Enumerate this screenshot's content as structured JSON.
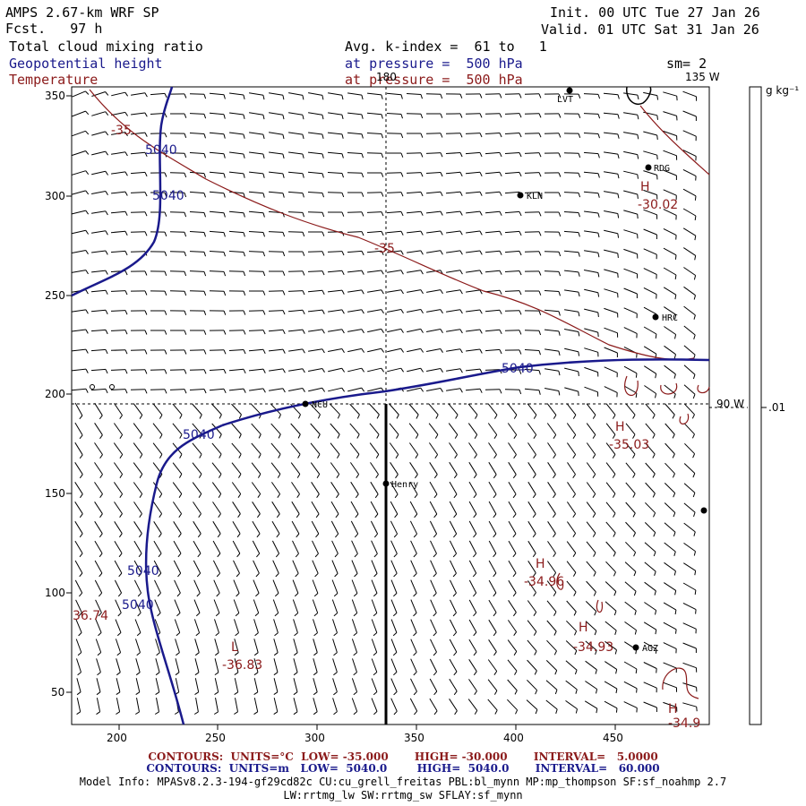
{
  "header": {
    "title": "AMPS 2.67-km WRF SP",
    "fcst": "Fcst.   97 h",
    "field1": "Total cloud mixing ratio",
    "field2": "Geopotential height",
    "field3": "Temperature",
    "init": "Init. 00 UTC Tue 27 Jan 26",
    "valid": "Valid. 01 UTC Sat 31 Jan 26",
    "avg": "Avg. k-index =  61 to   1",
    "pressure1": "at pressure =  500 hPa",
    "pressure2": "at pressure =  500 hPa",
    "sm": "sm= 2"
  },
  "colors": {
    "navy": "#1a1a8c",
    "maroon": "#8b1a1a",
    "black": "#000000"
  },
  "axes": {
    "x_ticks": [
      "200",
      "250",
      "300",
      "350",
      "400",
      "450"
    ],
    "y_ticks": [
      "350",
      "300",
      "250",
      "200",
      "150",
      "100",
      "50"
    ]
  },
  "map_labels": {
    "lon_top_180": "180",
    "lon_top_135w": "135 W",
    "lon_right_90w": "90 W",
    "colorbar_unit": "g kg⁻¹",
    "colorbar_value": ".01"
  },
  "stations": [
    "RDG",
    "KLN",
    "HRC",
    "NCU",
    "Henry",
    "AGZ",
    "LVT"
  ],
  "height_labels": [
    "5040",
    "5040",
    "5040",
    "5040",
    "5040",
    "5040"
  ],
  "temp_labels": {
    "t35a": "-35",
    "t35b": "-35",
    "h1_mark": "H",
    "h1_val": "-30.02",
    "h2_mark": "H",
    "h2_val": "-35.03",
    "h3_mark": "H",
    "h3_val": "-34.96",
    "h4_mark": "H",
    "h4_val": "-34.93",
    "l1_mark": "L",
    "l1_val": "-36.83",
    "left_val": "36.74",
    "h5_mark": "H",
    "h5_val": "-34.9"
  },
  "footer": {
    "line1": "CONTOURS:  UNITS=°C  LOW= -35.000       HIGH= -30.000       INTERVAL=   5.0000",
    "line2": "CONTOURS:  UNITS=m   LOW=  5040.0        HIGH=  5040.0       INTERVAL=   60.000",
    "line3": "Model Info: MPASv8.2.3-194-gf29cd82c CU:cu_grell_freitas PBL:bl_mynn MP:mp_thompson SF:sf_noahmp 2.7",
    "line4": "LW:rrtmg_lw SW:rrtmg_sw SFLAY:sf_mynn"
  }
}
